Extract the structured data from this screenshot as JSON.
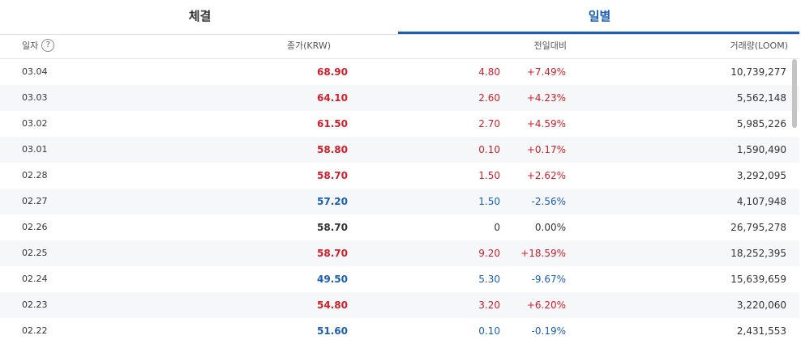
{
  "tabs": [
    {
      "label": "체결",
      "active": false
    },
    {
      "label": "일별",
      "active": true
    }
  ],
  "header": {
    "date": "일자",
    "help_icon": "?",
    "close": "종가(KRW)",
    "change": "전일대비",
    "volume": "거래량(LOOM)"
  },
  "colors": {
    "up": "#d0202b",
    "down": "#1a5fb4",
    "accent": "#1a5fb4"
  },
  "rows": [
    {
      "date": "03.04",
      "close": "68.90",
      "diff": "4.80",
      "pct": "+7.49%",
      "volume": "10,739,277",
      "dir": "up"
    },
    {
      "date": "03.03",
      "close": "64.10",
      "diff": "2.60",
      "pct": "+4.23%",
      "volume": "5,562,148",
      "dir": "up"
    },
    {
      "date": "03.02",
      "close": "61.50",
      "diff": "2.70",
      "pct": "+4.59%",
      "volume": "5,985,226",
      "dir": "up"
    },
    {
      "date": "03.01",
      "close": "58.80",
      "diff": "0.10",
      "pct": "+0.17%",
      "volume": "1,590,490",
      "dir": "up"
    },
    {
      "date": "02.28",
      "close": "58.70",
      "diff": "1.50",
      "pct": "+2.62%",
      "volume": "3,292,095",
      "dir": "up"
    },
    {
      "date": "02.27",
      "close": "57.20",
      "diff": "1.50",
      "pct": "-2.56%",
      "volume": "4,107,948",
      "dir": "down"
    },
    {
      "date": "02.26",
      "close": "58.70",
      "diff": "0",
      "pct": "0.00%",
      "volume": "26,795,278",
      "dir": "flat"
    },
    {
      "date": "02.25",
      "close": "58.70",
      "diff": "9.20",
      "pct": "+18.59%",
      "volume": "18,252,395",
      "dir": "up"
    },
    {
      "date": "02.24",
      "close": "49.50",
      "diff": "5.30",
      "pct": "-9.67%",
      "volume": "15,639,659",
      "dir": "down"
    },
    {
      "date": "02.23",
      "close": "54.80",
      "diff": "3.20",
      "pct": "+6.20%",
      "volume": "3,220,060",
      "dir": "up"
    },
    {
      "date": "02.22",
      "close": "51.60",
      "diff": "0.10",
      "pct": "-0.19%",
      "volume": "2,431,553",
      "dir": "down"
    }
  ]
}
